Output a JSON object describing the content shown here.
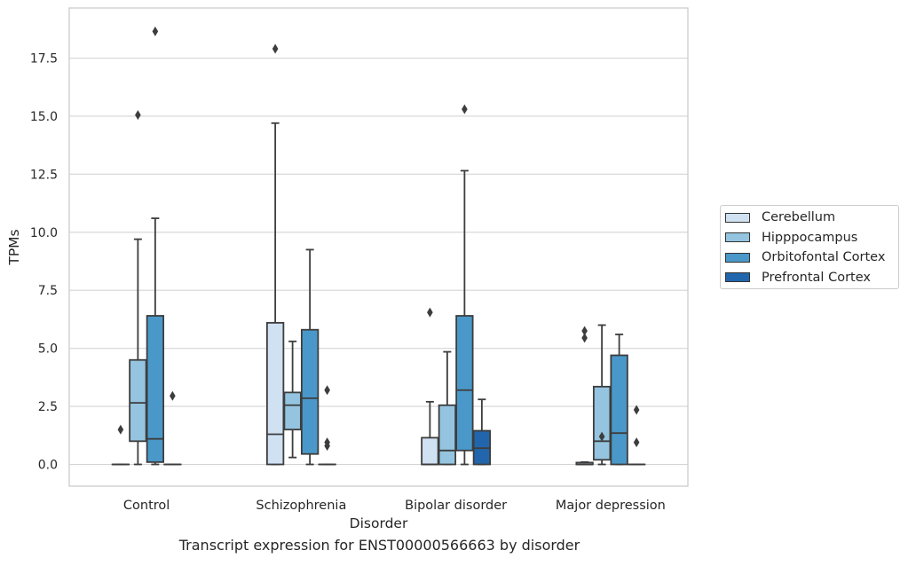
{
  "caption": "Transcript expression for ENST00000566663 by disorder",
  "chart_data": {
    "type": "box",
    "xlabel": "Disorder",
    "ylabel": "TPMs",
    "ylim": [
      -0.9,
      19.6
    ],
    "yticks": [
      "0.0",
      "2.5",
      "5.0",
      "7.5",
      "10.0",
      "12.5",
      "15.0",
      "17.5"
    ],
    "ytick_values": [
      0,
      2.5,
      5,
      7.5,
      10,
      12.5,
      15,
      17.5
    ],
    "grid": "horizontal",
    "legend_placement": "right",
    "categories": [
      "Control",
      "Schizophrenia",
      "Bipolar disorder",
      "Major depression"
    ],
    "series": [
      {
        "name": "Cerebellum",
        "color": "#d0e1f2",
        "boxes": [
          {
            "min": 0,
            "q1": 0,
            "median": 0,
            "q3": 0,
            "max": 0,
            "outliers": [
              1.5
            ]
          },
          {
            "min": 0,
            "q1": 0,
            "median": 1.3,
            "q3": 6.1,
            "max": 14.7,
            "outliers": [
              17.9
            ]
          },
          {
            "min": 0,
            "q1": 0,
            "median": 0,
            "q3": 1.15,
            "max": 2.7,
            "outliers": [
              6.55
            ]
          },
          {
            "min": 0,
            "q1": 0,
            "median": 0,
            "q3": 0.08,
            "max": 0.1,
            "outliers": [
              5.45,
              5.75
            ]
          }
        ]
      },
      {
        "name": "Hipppocampus",
        "color": "#94c4df",
        "boxes": [
          {
            "min": 0,
            "q1": 1.0,
            "median": 2.65,
            "q3": 4.5,
            "max": 9.7,
            "outliers": [
              15.05
            ]
          },
          {
            "min": 0.3,
            "q1": 1.5,
            "median": 2.55,
            "q3": 3.1,
            "max": 5.3,
            "outliers": []
          },
          {
            "min": 0,
            "q1": 0,
            "median": 0.6,
            "q3": 2.55,
            "max": 4.85,
            "outliers": []
          },
          {
            "min": 0,
            "q1": 0.2,
            "median": 1.0,
            "q3": 3.35,
            "max": 6.0,
            "outliers": [
              1.2
            ]
          }
        ]
      },
      {
        "name": "Orbitofontal Cortex",
        "color": "#4a98c9",
        "boxes": [
          {
            "min": 0,
            "q1": 0.1,
            "median": 1.1,
            "q3": 6.4,
            "max": 10.6,
            "outliers": [
              18.65
            ]
          },
          {
            "min": 0,
            "q1": 0.45,
            "median": 2.85,
            "q3": 5.8,
            "max": 9.25,
            "outliers": []
          },
          {
            "min": 0,
            "q1": 0.6,
            "median": 3.2,
            "q3": 6.4,
            "max": 12.65,
            "outliers": [
              15.3
            ]
          },
          {
            "min": 0,
            "q1": 0,
            "median": 1.35,
            "q3": 4.7,
            "max": 5.6,
            "outliers": []
          }
        ]
      },
      {
        "name": "Prefrontal Cortex",
        "color": "#2166ac",
        "boxes": [
          {
            "min": 0,
            "q1": 0,
            "median": 0,
            "q3": 0,
            "max": 0,
            "outliers": [
              2.95
            ]
          },
          {
            "min": 0,
            "q1": 0,
            "median": 0,
            "q3": 0,
            "max": 0,
            "outliers": [
              3.2,
              0.95,
              0.8
            ]
          },
          {
            "min": 0,
            "q1": 0,
            "median": 0.7,
            "q3": 1.45,
            "max": 2.8,
            "outliers": []
          },
          {
            "min": 0,
            "q1": 0,
            "median": 0,
            "q3": 0,
            "max": 0,
            "outliers": [
              2.35,
              0.95
            ]
          }
        ]
      }
    ]
  }
}
